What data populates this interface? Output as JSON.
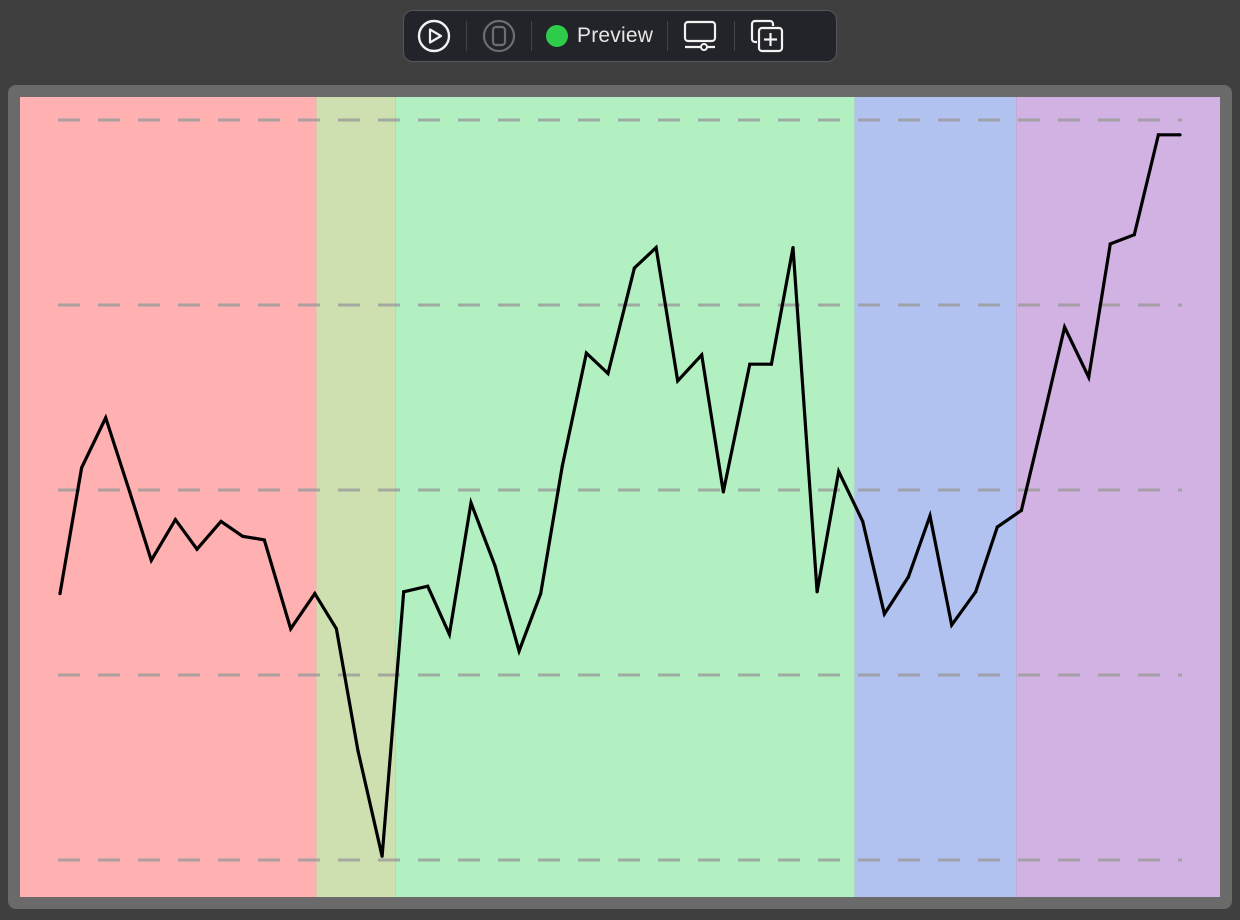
{
  "toolbar": {
    "items": [
      {
        "name": "live-preview-button",
        "icon": "play-circle-icon",
        "state": "active"
      },
      {
        "name": "device-selector-button",
        "icon": "device-icon",
        "state": "disabled"
      },
      {
        "name": "preview-mode-button",
        "label": "Preview",
        "status_color": "#2fcc4b"
      },
      {
        "name": "device-settings-button",
        "icon": "display-settings-icon"
      },
      {
        "name": "duplicate-preview-button",
        "icon": "add-copy-icon"
      }
    ],
    "preview_label": "Preview"
  },
  "colors": {
    "toolbar_bg": "#232429",
    "app_bg": "#3f3f3f",
    "frame": "#6a6a6a",
    "line": "#000000",
    "gridline": "#9a9a9a",
    "status_green": "#2fcc4b"
  },
  "chart_data": {
    "type": "line",
    "ylim": [
      0,
      4
    ],
    "grid": "horizontal-dashed",
    "xlabel": "",
    "ylabel": "",
    "bands": [
      {
        "x_start": 0,
        "x_end": 10.67,
        "color": "#ffb0b0"
      },
      {
        "x_start": 10.67,
        "x_end": 13.97,
        "color": "#cfe0b0"
      },
      {
        "x_start": 13.97,
        "x_end": 33.06,
        "color": "#b2f0c2"
      },
      {
        "x_start": 33.06,
        "x_end": 39.79,
        "color": "#b2c2f0"
      },
      {
        "x_start": 39.79,
        "x_end": 48.79,
        "color": "#d2b2e2"
      }
    ],
    "x": [
      0.0,
      0.9,
      1.9,
      2.9,
      3.8,
      4.8,
      5.7,
      6.7,
      7.6,
      8.5,
      9.6,
      10.6,
      11.5,
      12.4,
      13.4,
      14.3,
      15.3,
      16.2,
      17.1,
      18.1,
      19.1,
      20.0,
      20.9,
      21.9,
      22.8,
      23.9,
      24.8,
      25.7,
      26.7,
      27.6,
      28.7,
      29.6,
      30.5,
      31.5,
      32.4,
      33.4,
      34.3,
      35.3,
      36.2,
      37.1,
      38.1,
      39.0,
      40.0,
      40.9,
      41.8,
      42.8,
      43.7,
      44.7,
      45.7,
      46.6
    ],
    "values": [
      1.44,
      2.12,
      2.39,
      1.99,
      1.62,
      1.84,
      1.68,
      1.83,
      1.75,
      1.73,
      1.25,
      1.44,
      1.25,
      0.59,
      0.02,
      1.45,
      1.48,
      1.22,
      1.93,
      1.59,
      1.13,
      1.44,
      2.13,
      2.74,
      2.63,
      3.2,
      3.31,
      2.59,
      2.73,
      1.99,
      2.68,
      2.68,
      3.31,
      1.45,
      2.1,
      1.83,
      1.33,
      1.53,
      1.86,
      1.27,
      1.45,
      1.8,
      1.89,
      2.38,
      2.88,
      2.61,
      3.33,
      3.38,
      3.92,
      3.92
    ]
  }
}
